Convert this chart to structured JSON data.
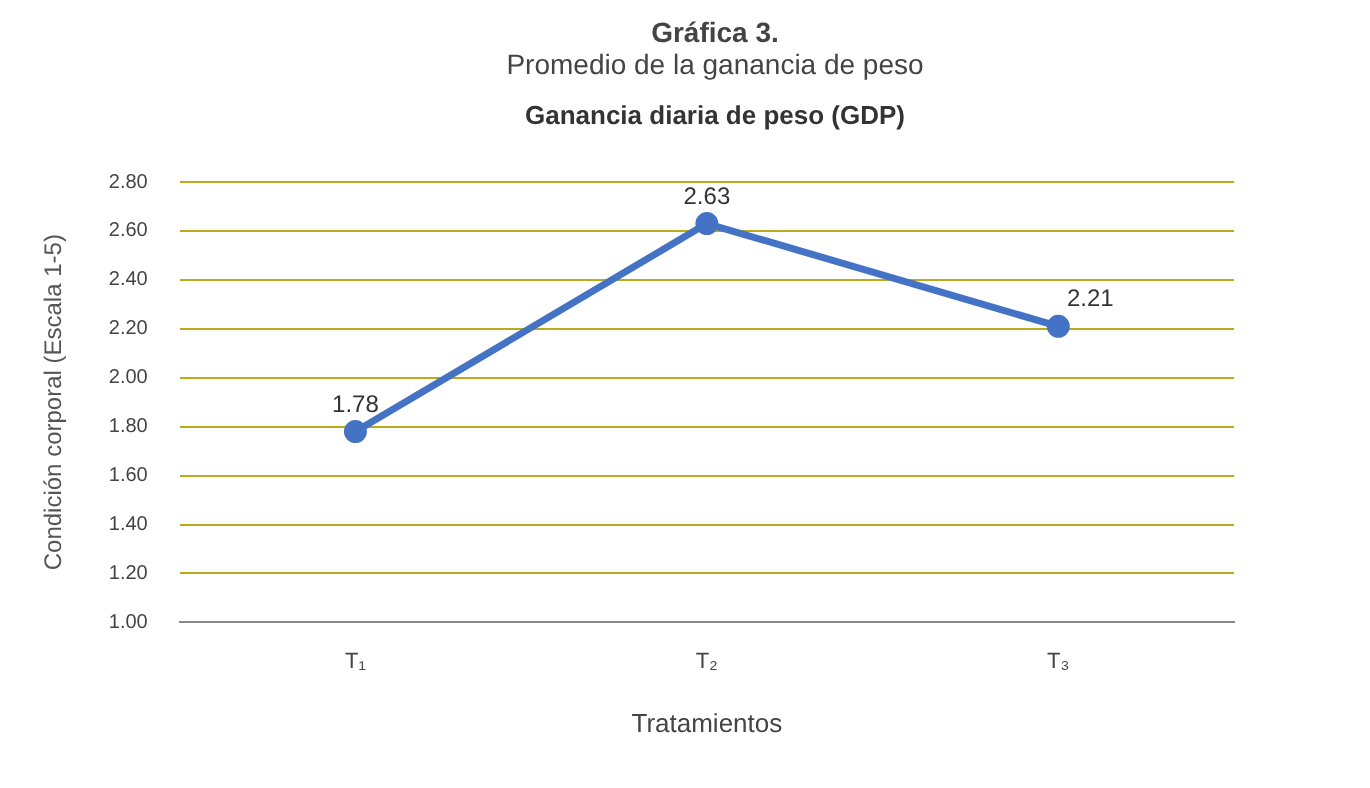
{
  "chart_data": {
    "type": "line",
    "title": "Gráfica 3.",
    "subtitle": "Promedio de la ganancia de peso",
    "annotations": [
      "Ganancia diaria de peso (GDP)"
    ],
    "xlabel": "Tratamientos",
    "ylabel": "Condición corporal (Escala 1-5)",
    "categories": [
      "T₁",
      "T₂",
      "T₃"
    ],
    "series": [
      {
        "color": "#4472c4",
        "values": [
          1.78,
          2.63,
          2.21
        ]
      }
    ],
    "ylim": [
      1,
      2.8
    ],
    "yticks": [
      {
        "value": 1,
        "label": "1.00"
      },
      {
        "value": 1.2,
        "label": "1.20"
      },
      {
        "value": 1.4,
        "label": "1.40"
      },
      {
        "value": 1.6,
        "label": "1.60"
      },
      {
        "value": 1.8,
        "label": "1.80"
      },
      {
        "value": 2,
        "label": "2.00"
      },
      {
        "value": 2.2,
        "label": "2.20"
      },
      {
        "value": 2.4,
        "label": "2.40"
      },
      {
        "value": 2.6,
        "label": "2.60"
      },
      {
        "value": 2.8,
        "label": "2.80"
      }
    ],
    "grid": "y",
    "marker": "circle",
    "line_style": "solid",
    "data_labels": true,
    "legend": false
  }
}
